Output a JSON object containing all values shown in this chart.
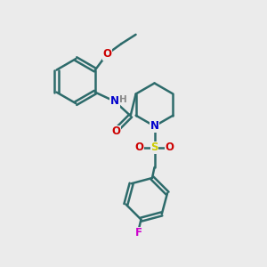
{
  "bg_color": "#ebebeb",
  "bond_color": "#2d6b6b",
  "bond_width": 1.8,
  "atom_colors": {
    "N": "#0000cc",
    "O": "#cc0000",
    "S": "#cccc00",
    "F": "#cc00cc",
    "H": "#888888",
    "C": "#2d6b6b"
  },
  "font_size_atom": 8.5,
  "font_size_h": 7.5
}
